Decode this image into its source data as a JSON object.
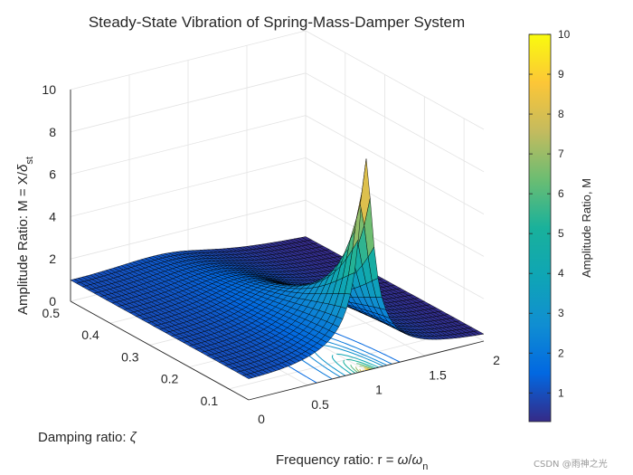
{
  "chart_data": {
    "type": "surface",
    "title": "Steady-State Vibration of Spring-Mass-Damper System",
    "function": "M = 1 / sqrt((1 - r^2)^2 + (2*zeta*r)^2)",
    "x": {
      "name": "r",
      "range": [
        0,
        2
      ],
      "ticks": [
        "0",
        "0.5",
        "1",
        "1.5",
        "2"
      ]
    },
    "y": {
      "name": "zeta",
      "range": [
        0.05,
        0.5
      ],
      "ticks": [
        "0.1",
        "0.2",
        "0.3",
        "0.4",
        "0.5"
      ]
    },
    "z": {
      "range": [
        0,
        10
      ],
      "ticks": [
        "0",
        "2",
        "4",
        "6",
        "8",
        "10"
      ]
    },
    "xlabel": {
      "main": "Frequency ratio: r = ",
      "sym1": "ω",
      "slash": "/",
      "sym2": "ω",
      "sub": "n"
    },
    "ylabel": {
      "main": "Damping ratio: ",
      "sym": "ζ"
    },
    "zlabel": {
      "main": "Amplitude Ratio: M = X/",
      "sym": "δ",
      "sub": "st"
    },
    "colorbar": {
      "label": "Amplitude Ratio, M",
      "range": [
        0.28,
        10
      ],
      "ticks": [
        "1",
        "2",
        "3",
        "4",
        "5",
        "6",
        "7",
        "8",
        "9",
        "10"
      ]
    },
    "peak": {
      "r": 1.0,
      "zeta": 0.05,
      "M": 10.0
    },
    "grid": true,
    "colormap": "parula",
    "contours_on_floor": true
  },
  "watermark": "CSDN @雨神之光"
}
